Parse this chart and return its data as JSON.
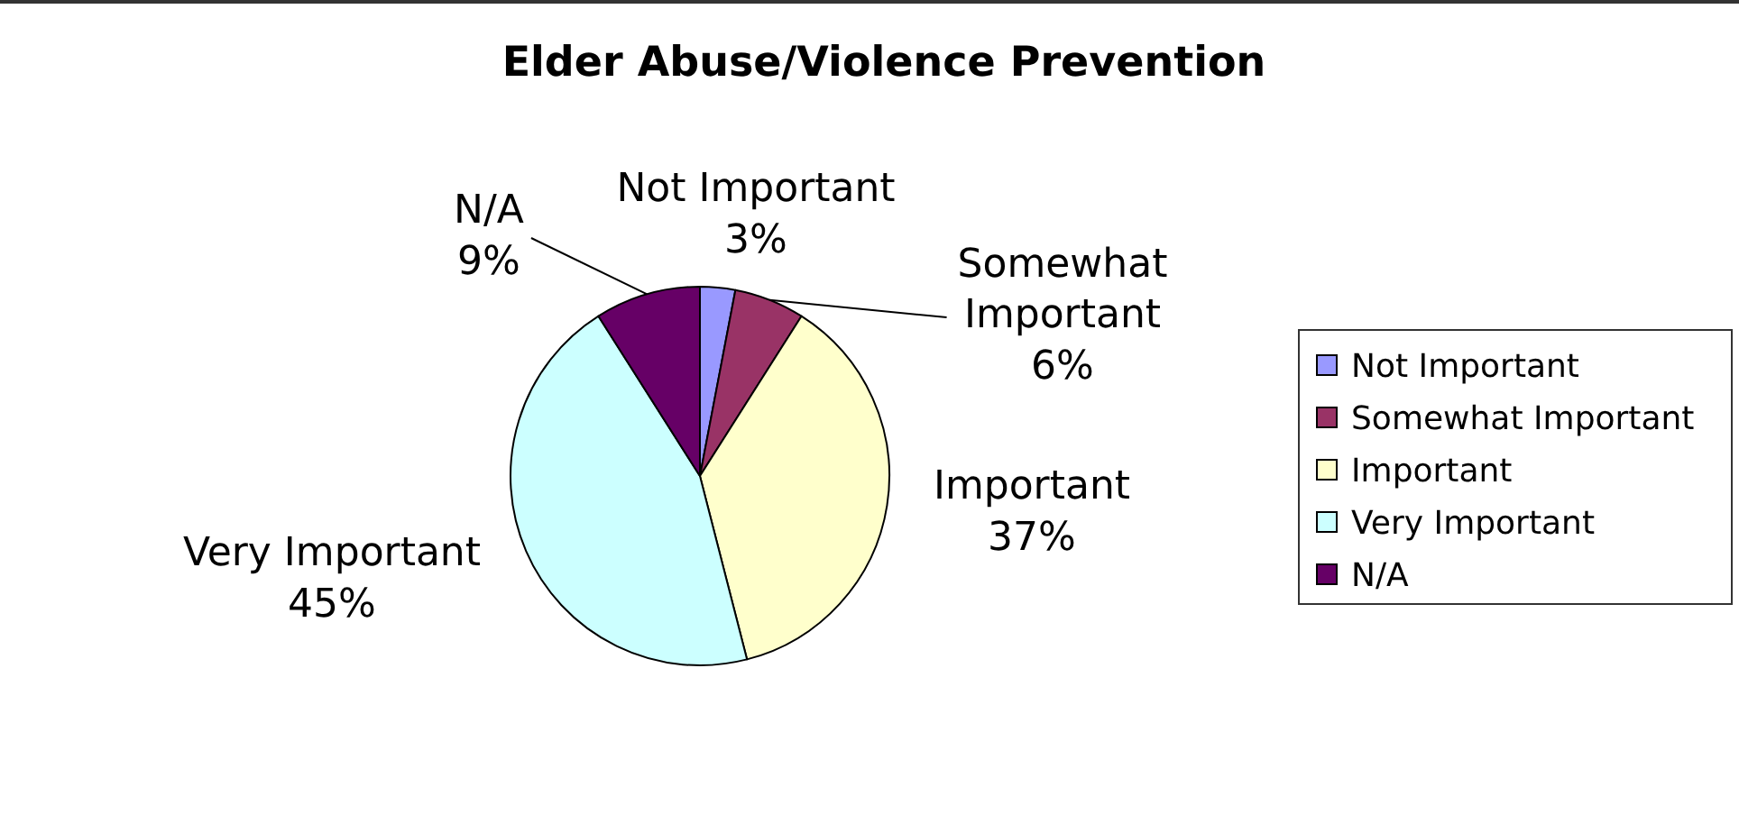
{
  "chart_data": {
    "type": "pie",
    "title": "Elder Abuse/Violence Prevention",
    "categories": [
      "Not Important",
      "Somewhat Important",
      "Important",
      "Very Important",
      "N/A"
    ],
    "values": [
      3,
      6,
      37,
      45,
      9
    ],
    "colors": [
      "#9999ff",
      "#993366",
      "#ffffcc",
      "#ccffff",
      "#660066"
    ],
    "value_labels": [
      "3%",
      "6%",
      "37%",
      "45%",
      "9%"
    ],
    "legend": "right"
  }
}
